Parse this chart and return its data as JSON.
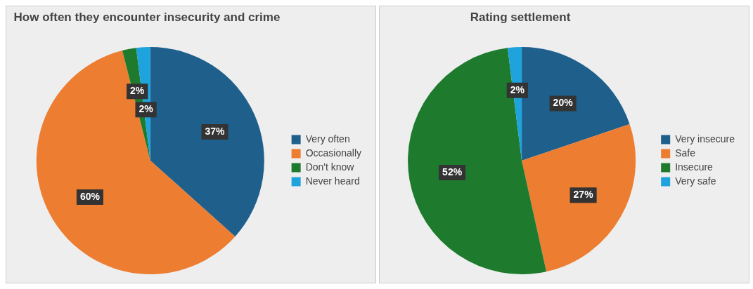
{
  "chart_data": [
    {
      "type": "pie",
      "title": "How often they encounter insecurity and crime",
      "categories": [
        "Very often",
        "Occasionally",
        "Don't know",
        "Never heard"
      ],
      "values": [
        37,
        60,
        2,
        2
      ],
      "colors": [
        "#1f5f8b",
        "#ed7d31",
        "#1e7b2e",
        "#1fa3dc"
      ],
      "value_labels": [
        "37%",
        "60%",
        "2%",
        "2%"
      ],
      "legend": "right"
    },
    {
      "type": "pie",
      "title": "Rating settlement",
      "categories": [
        "Very insecure",
        "Safe",
        "Insecure",
        "Very safe"
      ],
      "values": [
        20,
        27,
        52,
        2
      ],
      "colors": [
        "#1f5f8b",
        "#ed7d31",
        "#1e7b2e",
        "#1fa3dc"
      ],
      "value_labels": [
        "20%",
        "27%",
        "52%",
        "2%"
      ],
      "legend": "right"
    }
  ]
}
